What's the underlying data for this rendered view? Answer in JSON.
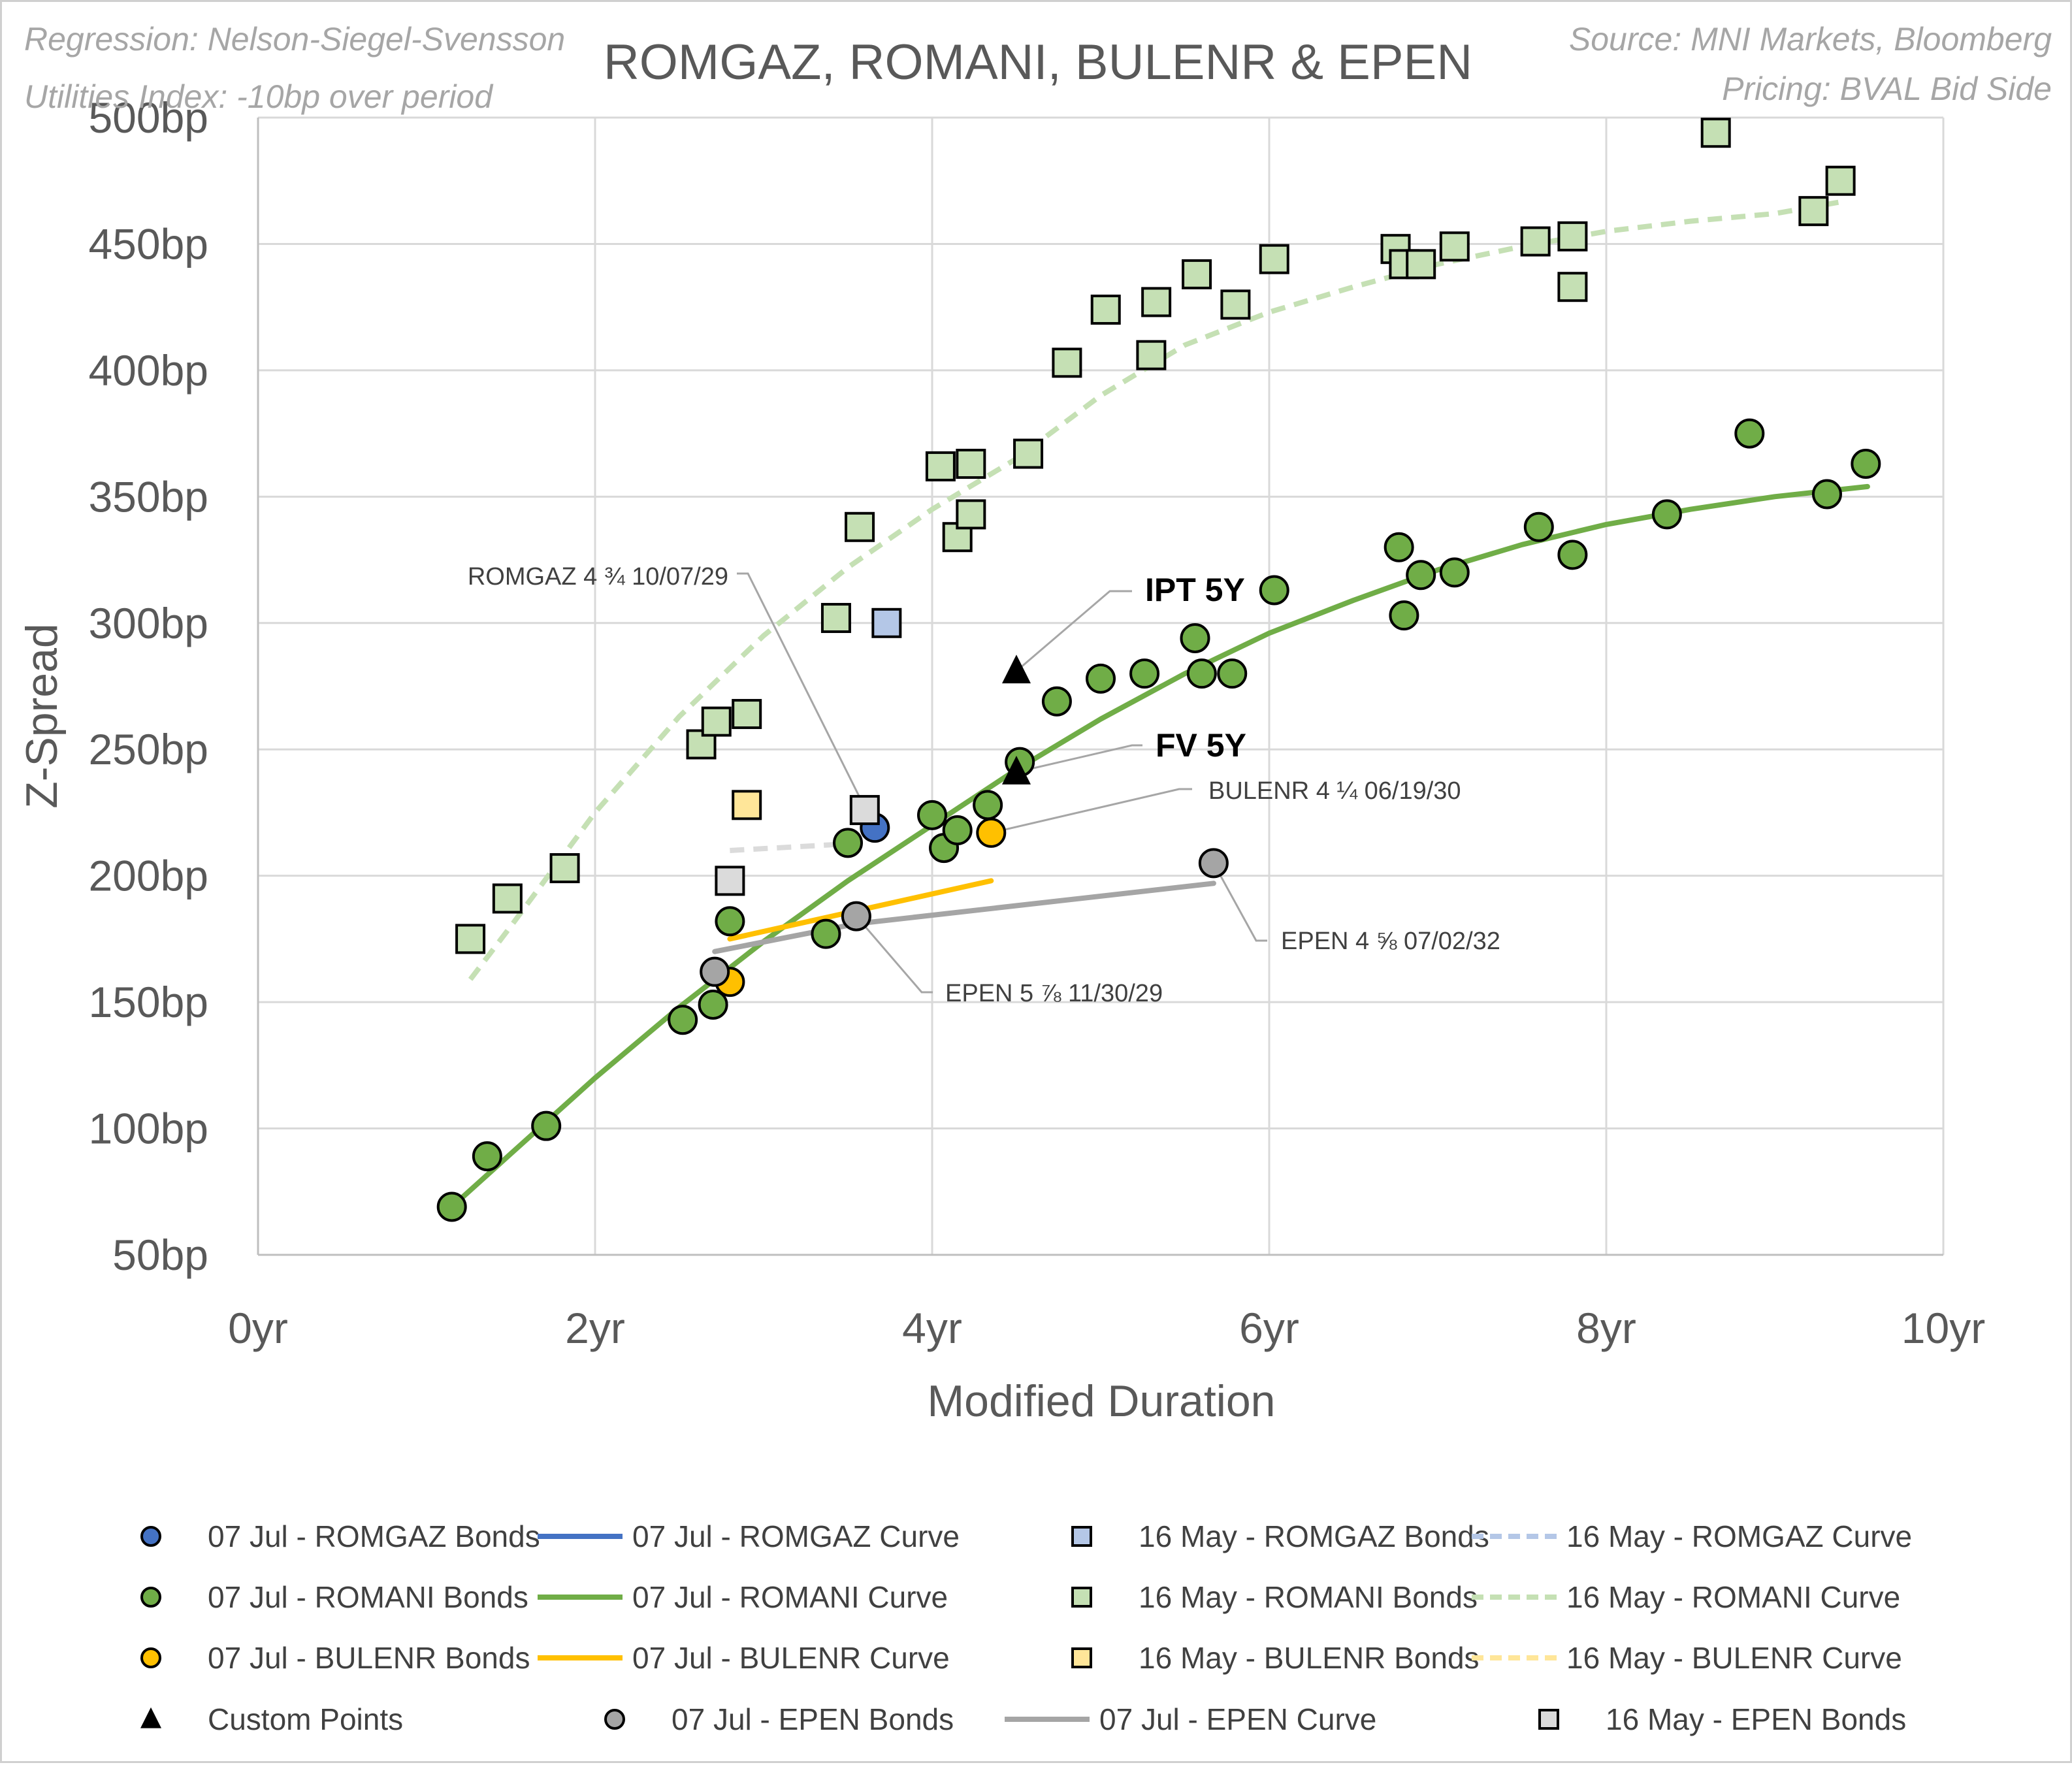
{
  "chart_data": {
    "type": "scatter",
    "title": "ROMGAZ, ROMANI, BULENR & EPEN",
    "notes_left": [
      "Regression: Nelson-Siegel-Svensson",
      "Utilities Index: -10bp over period"
    ],
    "notes_right": [
      "Source: MNI Markets, Bloomberg",
      "Pricing: BVAL Bid Side"
    ],
    "xlabel": "Modified Duration",
    "ylabel": "Z-Spread",
    "xlim": [
      0,
      10
    ],
    "ylim": [
      50,
      500
    ],
    "x_ticks": [
      0,
      2,
      4,
      6,
      8,
      10
    ],
    "x_tick_labels": [
      "0yr",
      "2yr",
      "4yr",
      "6yr",
      "8yr",
      "10yr"
    ],
    "y_ticks": [
      50,
      100,
      150,
      200,
      250,
      300,
      350,
      400,
      450,
      500
    ],
    "y_tick_labels": [
      "50bp",
      "100bp",
      "150bp",
      "200bp",
      "250bp",
      "300bp",
      "350bp",
      "400bp",
      "450bp",
      "500bp"
    ],
    "grid": true,
    "colors": {
      "romgaz_jul": "#4472c4",
      "romgaz_may": "#b4c7e7",
      "romani_jul": "#70ad47",
      "romani_may": "#c5e0b4",
      "bulenr_jul": "#ffc000",
      "bulenr_may": "#ffe699",
      "epen_jul": "#a5a5a5",
      "epen_may": "#dbdbdb",
      "custom": "#000000"
    },
    "series": [
      {
        "name": "07 Jul - ROMGAZ Bonds",
        "kind": "circle",
        "color_key": "romgaz_jul",
        "points": [
          [
            3.66,
            219
          ]
        ]
      },
      {
        "name": "16 May - ROMGAZ Bonds",
        "kind": "square",
        "color_key": "romgaz_may",
        "points": [
          [
            3.73,
            300
          ]
        ]
      },
      {
        "name": "07 Jul - ROMANI Bonds",
        "kind": "circle",
        "color_key": "romani_jul",
        "points": [
          [
            1.15,
            69
          ],
          [
            1.36,
            89
          ],
          [
            1.71,
            101
          ],
          [
            2.52,
            143
          ],
          [
            2.7,
            149
          ],
          [
            2.8,
            182
          ],
          [
            3.37,
            177
          ],
          [
            3.5,
            213
          ],
          [
            4.0,
            224
          ],
          [
            4.07,
            211
          ],
          [
            4.15,
            218
          ],
          [
            4.33,
            228
          ],
          [
            4.52,
            245
          ],
          [
            4.74,
            269
          ],
          [
            5.0,
            278
          ],
          [
            5.26,
            280
          ],
          [
            5.56,
            294
          ],
          [
            5.6,
            280
          ],
          [
            5.78,
            280
          ],
          [
            6.03,
            313
          ],
          [
            6.77,
            330
          ],
          [
            6.8,
            303
          ],
          [
            6.9,
            319
          ],
          [
            7.1,
            320
          ],
          [
            7.6,
            338
          ],
          [
            7.8,
            327
          ],
          [
            8.36,
            343
          ],
          [
            8.85,
            375
          ],
          [
            9.31,
            351
          ],
          [
            9.54,
            363
          ]
        ]
      },
      {
        "name": "16 May - ROMANI Bonds",
        "kind": "square",
        "color_key": "romani_may",
        "points": [
          [
            1.26,
            175
          ],
          [
            1.48,
            191
          ],
          [
            1.82,
            203
          ],
          [
            2.63,
            252
          ],
          [
            2.72,
            261
          ],
          [
            2.9,
            264
          ],
          [
            3.43,
            302
          ],
          [
            3.57,
            338
          ],
          [
            4.05,
            362
          ],
          [
            4.15,
            334
          ],
          [
            4.23,
            363
          ],
          [
            4.23,
            343
          ],
          [
            4.57,
            367
          ],
          [
            4.8,
            403
          ],
          [
            5.03,
            424
          ],
          [
            5.3,
            406
          ],
          [
            5.33,
            427
          ],
          [
            5.57,
            438
          ],
          [
            5.8,
            426
          ],
          [
            6.03,
            444
          ],
          [
            6.75,
            448
          ],
          [
            6.8,
            442
          ],
          [
            6.9,
            442
          ],
          [
            7.1,
            449
          ],
          [
            7.58,
            451
          ],
          [
            7.8,
            453
          ],
          [
            7.8,
            433
          ],
          [
            8.65,
            494
          ],
          [
            9.23,
            463
          ],
          [
            9.39,
            475
          ]
        ]
      },
      {
        "name": "07 Jul - BULENR Bonds",
        "kind": "circle",
        "color_key": "bulenr_jul",
        "points": [
          [
            2.8,
            158
          ],
          [
            4.35,
            217
          ]
        ]
      },
      {
        "name": "16 May - BULENR Bonds",
        "kind": "square",
        "color_key": "bulenr_may",
        "points": [
          [
            2.9,
            228
          ]
        ]
      },
      {
        "name": "07 Jul - EPEN Bonds",
        "kind": "circle",
        "color_key": "epen_jul",
        "points": [
          [
            2.71,
            162
          ],
          [
            3.55,
            184
          ],
          [
            5.67,
            205
          ]
        ]
      },
      {
        "name": "16 May - EPEN Bonds",
        "kind": "square",
        "color_key": "epen_may",
        "points": [
          [
            2.8,
            198
          ],
          [
            3.6,
            226
          ]
        ]
      },
      {
        "name": "Custom Points",
        "kind": "triangle",
        "color_key": "custom",
        "points": [
          [
            4.5,
            281
          ],
          [
            4.5,
            241
          ]
        ]
      }
    ],
    "curves": [
      {
        "name": "07 Jul - ROMGAZ Curve",
        "color_key": "romgaz_jul",
        "dashed": false,
        "points": []
      },
      {
        "name": "16 May - ROMGAZ Curve",
        "color_key": "romgaz_may",
        "dashed": true,
        "points": []
      },
      {
        "name": "07 Jul - ROMANI Curve",
        "color_key": "romani_jul",
        "dashed": false,
        "points": [
          [
            1.15,
            69
          ],
          [
            1.5,
            90
          ],
          [
            2.0,
            120
          ],
          [
            2.5,
            148
          ],
          [
            3.0,
            174
          ],
          [
            3.5,
            198
          ],
          [
            4.0,
            220
          ],
          [
            4.5,
            242
          ],
          [
            5.0,
            262
          ],
          [
            5.5,
            280
          ],
          [
            6.0,
            296
          ],
          [
            6.5,
            309
          ],
          [
            7.0,
            321
          ],
          [
            7.5,
            331
          ],
          [
            8.0,
            339
          ],
          [
            8.5,
            345
          ],
          [
            9.0,
            350
          ],
          [
            9.55,
            354
          ]
        ]
      },
      {
        "name": "16 May - ROMANI Curve",
        "color_key": "romani_may",
        "dashed": true,
        "points": [
          [
            1.26,
            159
          ],
          [
            1.5,
            180
          ],
          [
            2.0,
            225
          ],
          [
            2.5,
            263
          ],
          [
            3.0,
            295
          ],
          [
            3.5,
            322
          ],
          [
            4.0,
            345
          ],
          [
            4.5,
            365
          ],
          [
            5.0,
            390
          ],
          [
            5.5,
            410
          ],
          [
            6.0,
            423
          ],
          [
            6.5,
            433
          ],
          [
            7.0,
            442
          ],
          [
            7.5,
            449
          ],
          [
            8.0,
            455
          ],
          [
            8.5,
            459
          ],
          [
            9.0,
            462
          ],
          [
            9.42,
            467
          ]
        ]
      },
      {
        "name": "07 Jul - BULENR Curve",
        "color_key": "bulenr_jul",
        "dashed": false,
        "points": [
          [
            2.8,
            175
          ],
          [
            4.35,
            198
          ]
        ]
      },
      {
        "name": "16 May - BULENR Curve",
        "color_key": "bulenr_may",
        "dashed": true,
        "points": []
      },
      {
        "name": "07 Jul - EPEN Curve",
        "color_key": "epen_jul",
        "dashed": false,
        "points": [
          [
            2.71,
            170
          ],
          [
            3.55,
            181
          ],
          [
            5.67,
            197
          ]
        ]
      },
      {
        "name": "16 May - EPEN Curve",
        "color_key": "epen_may",
        "dashed": true,
        "points": [
          [
            2.8,
            210
          ],
          [
            3.6,
            213
          ]
        ]
      }
    ],
    "annotations": [
      {
        "text": "ROMGAZ 4 ¾ 10/07/29",
        "bold": false,
        "x": 3.66,
        "y": 219
      },
      {
        "text": "IPT 5Y",
        "bold": true,
        "x": 4.5,
        "y": 281
      },
      {
        "text": "FV 5Y",
        "bold": true,
        "x": 4.5,
        "y": 241
      },
      {
        "text": "BULENR 4 ¼ 06/19/30",
        "bold": false,
        "x": 4.35,
        "y": 217
      },
      {
        "text": "EPEN 4 ⅝ 07/02/32",
        "bold": false,
        "x": 5.67,
        "y": 205
      },
      {
        "text": "EPEN 5 ⅞ 11/30/29",
        "bold": false,
        "x": 3.55,
        "y": 184
      }
    ],
    "legend": [
      {
        "label": "07 Jul - ROMGAZ Bonds",
        "kind": "circle",
        "color_key": "romgaz_jul"
      },
      {
        "label": "07 Jul - ROMGAZ Curve",
        "kind": "line",
        "color_key": "romgaz_jul"
      },
      {
        "label": "16 May - ROMGAZ Bonds",
        "kind": "square",
        "color_key": "romgaz_may"
      },
      {
        "label": "16 May - ROMGAZ Curve",
        "kind": "dash",
        "color_key": "romgaz_may"
      },
      {
        "label": "07 Jul - ROMANI Bonds",
        "kind": "circle",
        "color_key": "romani_jul"
      },
      {
        "label": "07 Jul - ROMANI Curve",
        "kind": "line",
        "color_key": "romani_jul"
      },
      {
        "label": "16 May - ROMANI Bonds",
        "kind": "square",
        "color_key": "romani_may"
      },
      {
        "label": "16 May - ROMANI Curve",
        "kind": "dash",
        "color_key": "romani_may"
      },
      {
        "label": "07 Jul - BULENR Bonds",
        "kind": "circle",
        "color_key": "bulenr_jul"
      },
      {
        "label": "07 Jul - BULENR Curve",
        "kind": "line",
        "color_key": "bulenr_jul"
      },
      {
        "label": "16 May - BULENR Bonds",
        "kind": "square",
        "color_key": "bulenr_may"
      },
      {
        "label": "16 May - BULENR Curve",
        "kind": "dash",
        "color_key": "bulenr_may"
      },
      {
        "label": "Custom Points",
        "kind": "triangle",
        "color_key": "custom"
      },
      {
        "label": "07 Jul - EPEN Bonds",
        "kind": "circle",
        "color_key": "epen_jul"
      },
      {
        "label": "07 Jul - EPEN Curve",
        "kind": "line",
        "color_key": "epen_jul"
      },
      {
        "label": "16 May - EPEN Bonds",
        "kind": "square",
        "color_key": "epen_may"
      }
    ],
    "legend_position": "bottom"
  }
}
